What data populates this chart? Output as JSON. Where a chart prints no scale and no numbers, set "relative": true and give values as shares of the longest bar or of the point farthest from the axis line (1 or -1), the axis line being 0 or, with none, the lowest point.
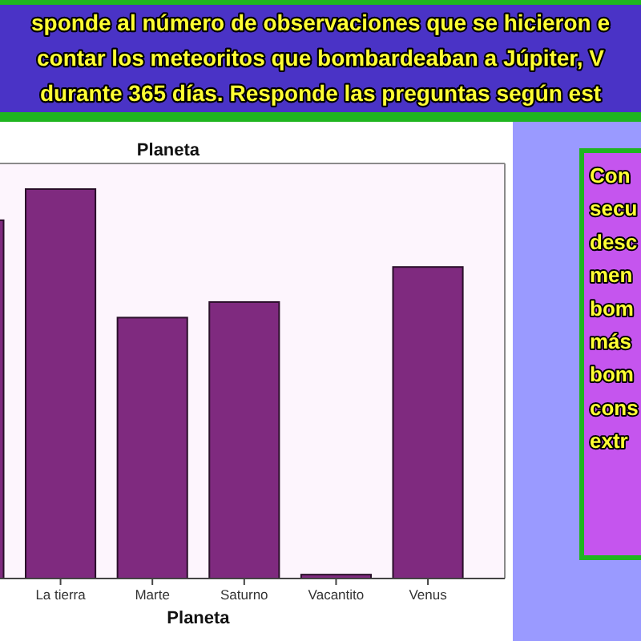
{
  "chart_data": {
    "type": "bar",
    "title": "Planeta",
    "xlabel": "Planeta",
    "categories": [
      null,
      "La tierra",
      "Marte",
      "Saturno",
      "Vacantito",
      "Venus"
    ],
    "values": [
      0.92,
      1,
      0.67,
      0.71,
      0.01,
      0.8
    ],
    "color": "#7f2a7f",
    "relative": true,
    "annotations": [
      "sponde al número de observaciones que se hicieron e\ncontar los meteoritos que bombardeaban a Júpiter, V\ndurante 365 días. Responde las preguntas según est",
      "Con\nsecu\ndesc\nmen\nbom\nmás\nbom\ncons\nextr"
    ]
  }
}
